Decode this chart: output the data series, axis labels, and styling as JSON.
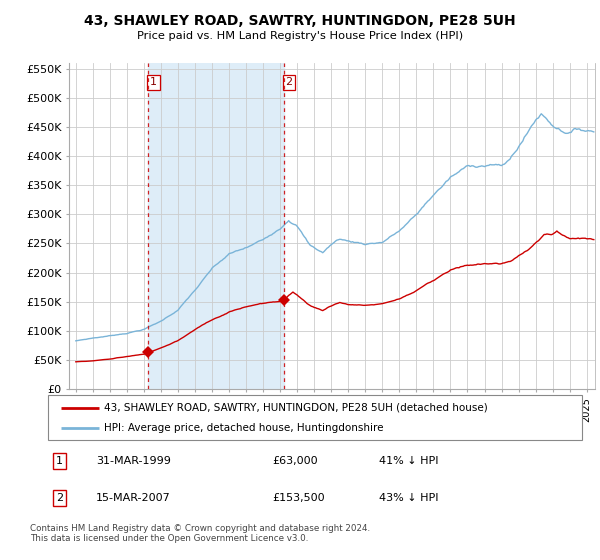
{
  "title": "43, SHAWLEY ROAD, SAWTRY, HUNTINGDON, PE28 5UH",
  "subtitle": "Price paid vs. HM Land Registry's House Price Index (HPI)",
  "legend_line1": "43, SHAWLEY ROAD, SAWTRY, HUNTINGDON, PE28 5UH (detached house)",
  "legend_line2": "HPI: Average price, detached house, Huntingdonshire",
  "footnote": "Contains HM Land Registry data © Crown copyright and database right 2024.\nThis data is licensed under the Open Government Licence v3.0.",
  "transaction1_date": "31-MAR-1999",
  "transaction1_price": "£63,000",
  "transaction1_pct": "41% ↓ HPI",
  "transaction2_date": "15-MAR-2007",
  "transaction2_price": "£153,500",
  "transaction2_pct": "43% ↓ HPI",
  "hpi_color": "#7ab4d8",
  "price_color": "#cc0000",
  "shade_color": "#deedf8",
  "marker1_x_year": 1999.25,
  "marker1_y": 63000,
  "marker2_x_year": 2007.21,
  "marker2_y": 153500,
  "vline1_x_year": 1999.25,
  "vline2_x_year": 2007.21,
  "ylim": [
    0,
    560000
  ],
  "xlim_start": 1994.6,
  "xlim_end": 2025.5,
  "background_color": "#ffffff",
  "plot_bg_color": "#ffffff",
  "grid_color": "#cccccc"
}
